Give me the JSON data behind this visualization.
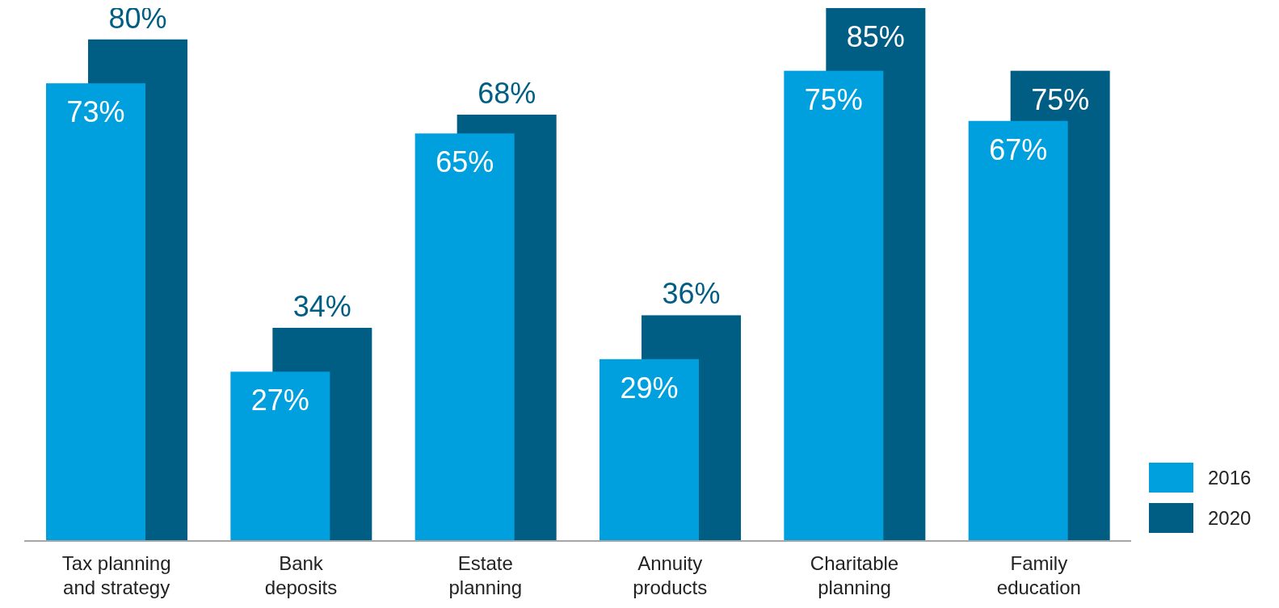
{
  "chart_data": {
    "type": "bar",
    "categories": [
      "Tax planning\nand strategy",
      "Bank\ndeposits",
      "Estate\nplanning",
      "Annuity\nproducts",
      "Charitable\nplanning",
      "Family\neducation"
    ],
    "series": [
      {
        "name": "2016",
        "color": "#00a0df",
        "values": [
          73,
          27,
          65,
          29,
          75,
          67
        ],
        "value_labels": [
          "73%",
          "27%",
          "65%",
          "29%",
          "75%",
          "67%"
        ]
      },
      {
        "name": "2020",
        "color": "#005e85",
        "values": [
          80,
          34,
          68,
          36,
          85,
          75
        ],
        "value_labels": [
          "80%",
          "34%",
          "68%",
          "36%",
          "85%",
          "75%"
        ]
      }
    ],
    "legend": "bottom right",
    "grid": false
  }
}
